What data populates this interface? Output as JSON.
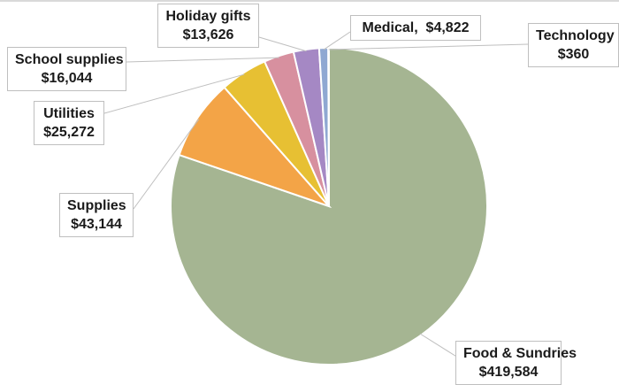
{
  "chart_data": {
    "type": "pie",
    "title": "",
    "categories": [
      "Food & Sundries",
      "Supplies",
      "Utilities",
      "School supplies",
      "Holiday gifts",
      "Medical",
      "Technology"
    ],
    "values": [
      419584,
      43144,
      25272,
      16044,
      13626,
      4822,
      360
    ],
    "value_labels": [
      "$419,584",
      "$43,144",
      "$25,272",
      "$16,044",
      "$13,626",
      "$4,822",
      "$360"
    ],
    "colors": [
      "#a5b592",
      "#f3a447",
      "#e7c033",
      "#d7909f",
      "#a588c4",
      "#8fa8d2",
      "#c6d0e0"
    ],
    "legend": "none",
    "data_labels": "callouts with leader lines"
  }
}
